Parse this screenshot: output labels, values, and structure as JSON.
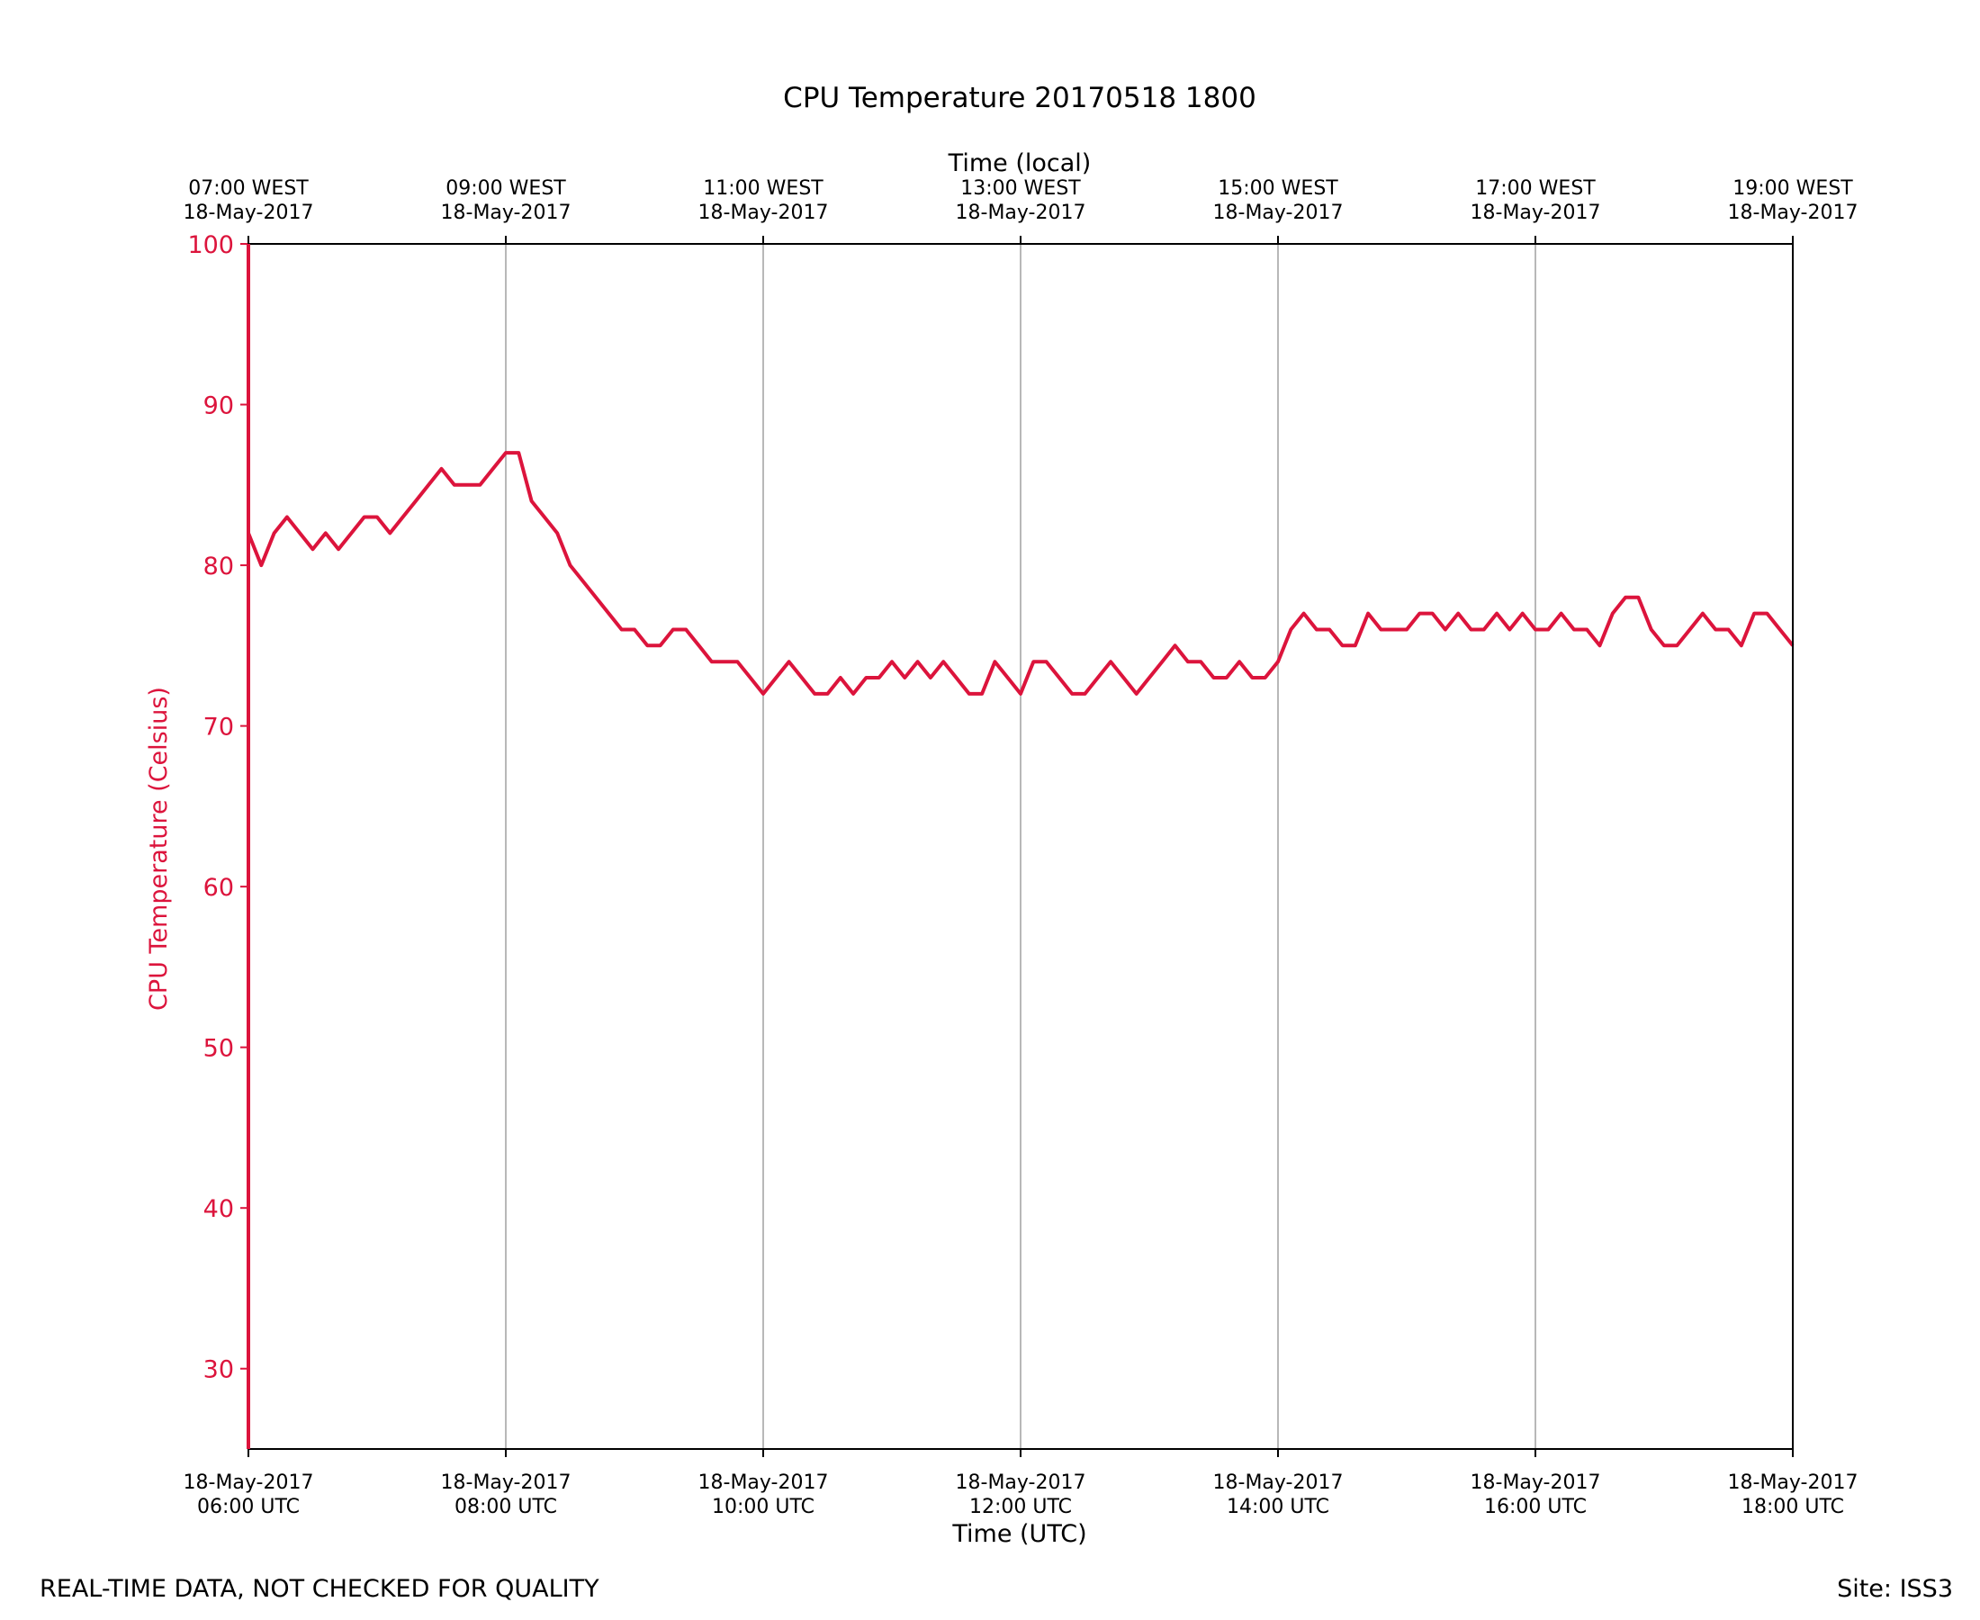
{
  "chart_data": {
    "type": "line",
    "title": "CPU Temperature 20170518 1800",
    "xlabel": "Time (UTC)",
    "top_xlabel": "Time (local)",
    "ylabel": "CPU Temperature (Celsius)",
    "ylim": [
      25,
      100
    ],
    "xlim_hours_utc": [
      6,
      18
    ],
    "yticks": [
      30,
      40,
      50,
      60,
      70,
      80,
      90,
      100
    ],
    "xticks_hours_utc": [
      6,
      8,
      10,
      12,
      14,
      16,
      18
    ],
    "bottom_tick_labels": [
      [
        "18-May-2017",
        "06:00 UTC"
      ],
      [
        "18-May-2017",
        "08:00 UTC"
      ],
      [
        "18-May-2017",
        "10:00 UTC"
      ],
      [
        "18-May-2017",
        "12:00 UTC"
      ],
      [
        "18-May-2017",
        "14:00 UTC"
      ],
      [
        "18-May-2017",
        "16:00 UTC"
      ],
      [
        "18-May-2017",
        "18:00 UTC"
      ]
    ],
    "top_tick_labels": [
      [
        "07:00 WEST",
        "18-May-2017"
      ],
      [
        "09:00 WEST",
        "18-May-2017"
      ],
      [
        "11:00 WEST",
        "18-May-2017"
      ],
      [
        "13:00 WEST",
        "18-May-2017"
      ],
      [
        "15:00 WEST",
        "18-May-2017"
      ],
      [
        "17:00 WEST",
        "18-May-2017"
      ],
      [
        "19:00 WEST",
        "18-May-2017"
      ]
    ],
    "grid": "vertical",
    "series": [
      {
        "name": "CPU Temperature",
        "color": "#dc143c",
        "x_hours_utc": [
          6.0,
          6.1,
          6.2,
          6.3,
          6.4,
          6.5,
          6.6,
          6.7,
          6.8,
          6.9,
          7.0,
          7.1,
          7.2,
          7.3,
          7.4,
          7.5,
          7.6,
          7.7,
          7.8,
          7.9,
          8.0,
          8.1,
          8.2,
          8.3,
          8.4,
          8.5,
          8.6,
          8.7,
          8.8,
          8.9,
          9.0,
          9.1,
          9.2,
          9.3,
          9.4,
          9.5,
          9.6,
          9.7,
          9.8,
          9.9,
          10.0,
          10.1,
          10.2,
          10.3,
          10.4,
          10.5,
          10.6,
          10.7,
          10.8,
          10.9,
          11.0,
          11.1,
          11.2,
          11.3,
          11.4,
          11.5,
          11.6,
          11.7,
          11.8,
          11.9,
          12.0,
          12.1,
          12.2,
          12.3,
          12.4,
          12.5,
          12.6,
          12.7,
          12.8,
          12.9,
          13.0,
          13.1,
          13.2,
          13.3,
          13.4,
          13.5,
          13.6,
          13.7,
          13.8,
          13.9,
          14.0,
          14.1,
          14.2,
          14.3,
          14.4,
          14.5,
          14.6,
          14.7,
          14.8,
          14.9,
          15.0,
          15.1,
          15.2,
          15.3,
          15.4,
          15.5,
          15.6,
          15.7,
          15.8,
          15.9,
          16.0,
          16.1,
          16.2,
          16.3,
          16.4,
          16.5,
          16.6,
          16.7,
          16.8,
          16.9,
          17.0,
          17.1,
          17.2,
          17.3,
          17.4,
          17.5,
          17.6,
          17.7,
          17.8,
          17.9,
          18.0
        ],
        "values": [
          82,
          80,
          82,
          83,
          82,
          81,
          82,
          81,
          82,
          83,
          83,
          82,
          83,
          84,
          85,
          86,
          85,
          85,
          85,
          86,
          87,
          87,
          84,
          83,
          82,
          80,
          79,
          78,
          77,
          76,
          76,
          75,
          75,
          76,
          76,
          75,
          74,
          74,
          74,
          73,
          72,
          73,
          74,
          73,
          72,
          72,
          73,
          72,
          73,
          73,
          74,
          73,
          74,
          73,
          74,
          73,
          72,
          72,
          74,
          73,
          72,
          74,
          74,
          73,
          72,
          72,
          73,
          74,
          73,
          72,
          73,
          74,
          75,
          74,
          74,
          73,
          73,
          74,
          73,
          73,
          74,
          76,
          77,
          76,
          76,
          75,
          75,
          77,
          76,
          76,
          76,
          77,
          77,
          76,
          77,
          76,
          76,
          77,
          76,
          77,
          76,
          76,
          77,
          76,
          76,
          75,
          77,
          78,
          78,
          76,
          75,
          75,
          76,
          77,
          76,
          76,
          75,
          77,
          77,
          76,
          75
        ]
      }
    ]
  },
  "footer": {
    "left": "REAL-TIME DATA, NOT CHECKED FOR QUALITY",
    "right": "Site: ISS3"
  },
  "colors": {
    "series": "#dc143c",
    "axis": "#000000",
    "grid": "#a0a0a0"
  }
}
